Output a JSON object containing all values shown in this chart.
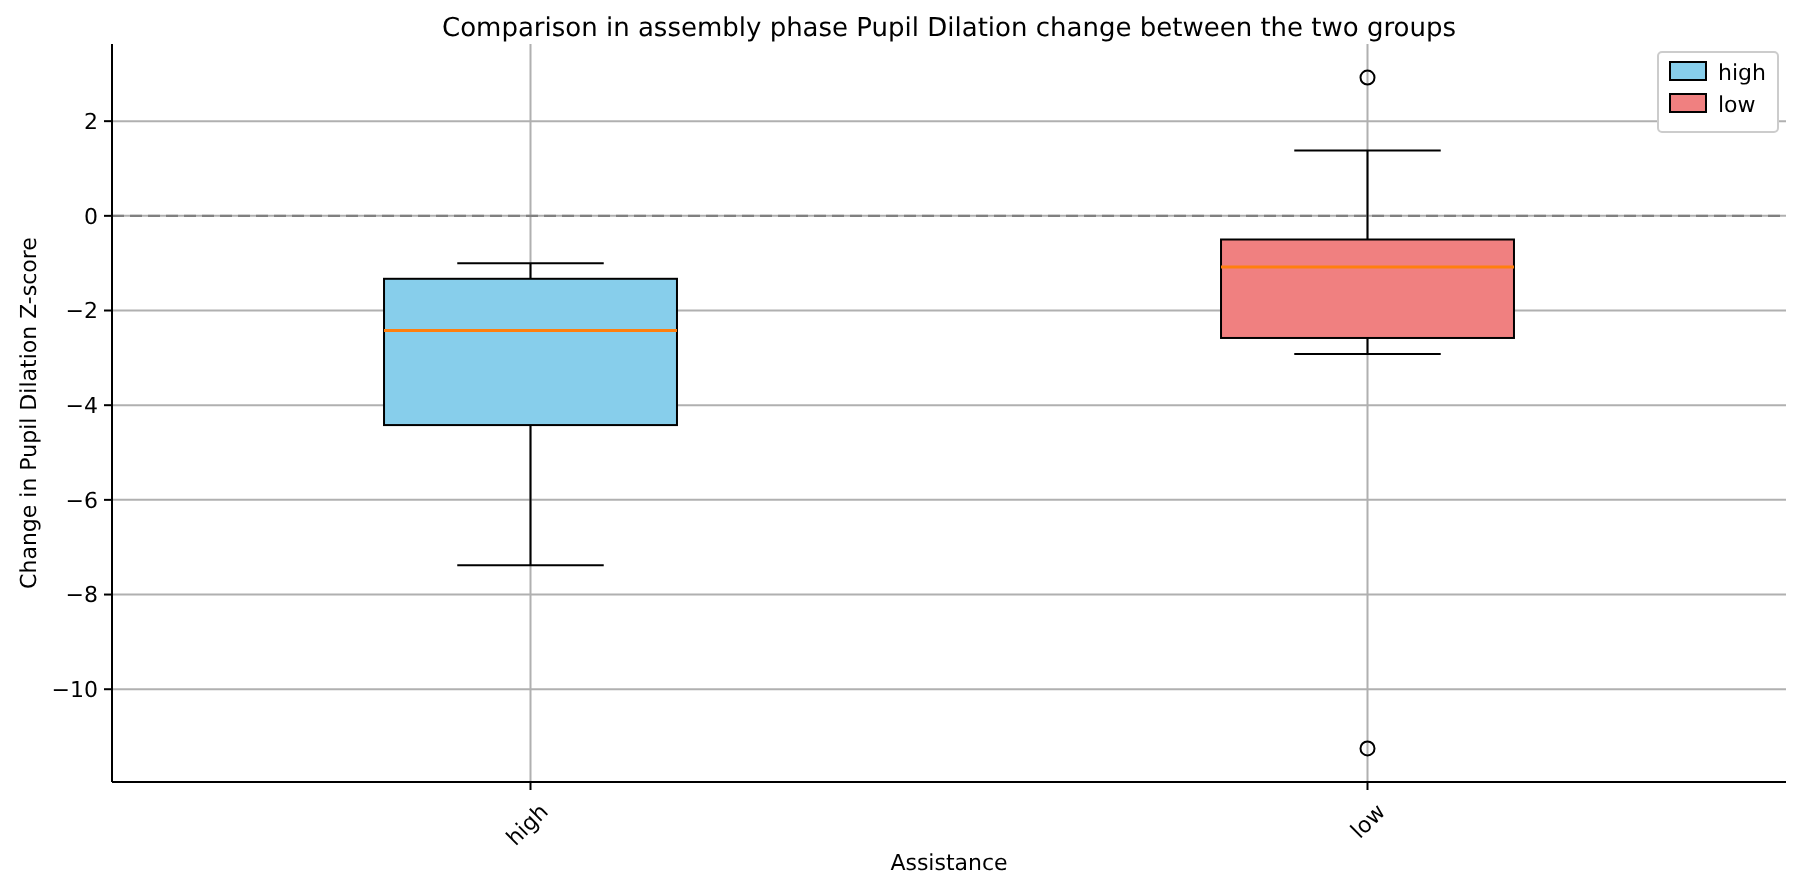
{
  "chart_data": {
    "type": "box",
    "title": "Comparison in assembly phase Pupil Dilation change  between the two groups",
    "xlabel": "Assistance",
    "ylabel": "Change in Pupil Dilation Z-score",
    "categories": [
      "high",
      "low"
    ],
    "series": [
      {
        "name": "high",
        "color": "#87ceeb",
        "boxes": [
          {
            "low": -7.38,
            "q1": -4.42,
            "median": -2.42,
            "q3": -1.33,
            "high": -1.0
          },
          null
        ]
      },
      {
        "name": "low",
        "color": "#f08080",
        "boxes": [
          null,
          {
            "low": -2.92,
            "q1": -2.58,
            "median": -1.08,
            "q3": -0.5,
            "high": 1.38,
            "outliers": [
              2.92,
              -11.25
            ]
          }
        ]
      }
    ],
    "ylim": [
      -11.96,
      3.63
    ],
    "yticks": [
      -10,
      -8,
      -6,
      -4,
      -2,
      0,
      2
    ],
    "grid": true,
    "legend": "top right",
    "ref_lines": [
      {
        "axis": "y",
        "value": 0,
        "color": "#808080",
        "line_style": "dashed"
      }
    ]
  }
}
